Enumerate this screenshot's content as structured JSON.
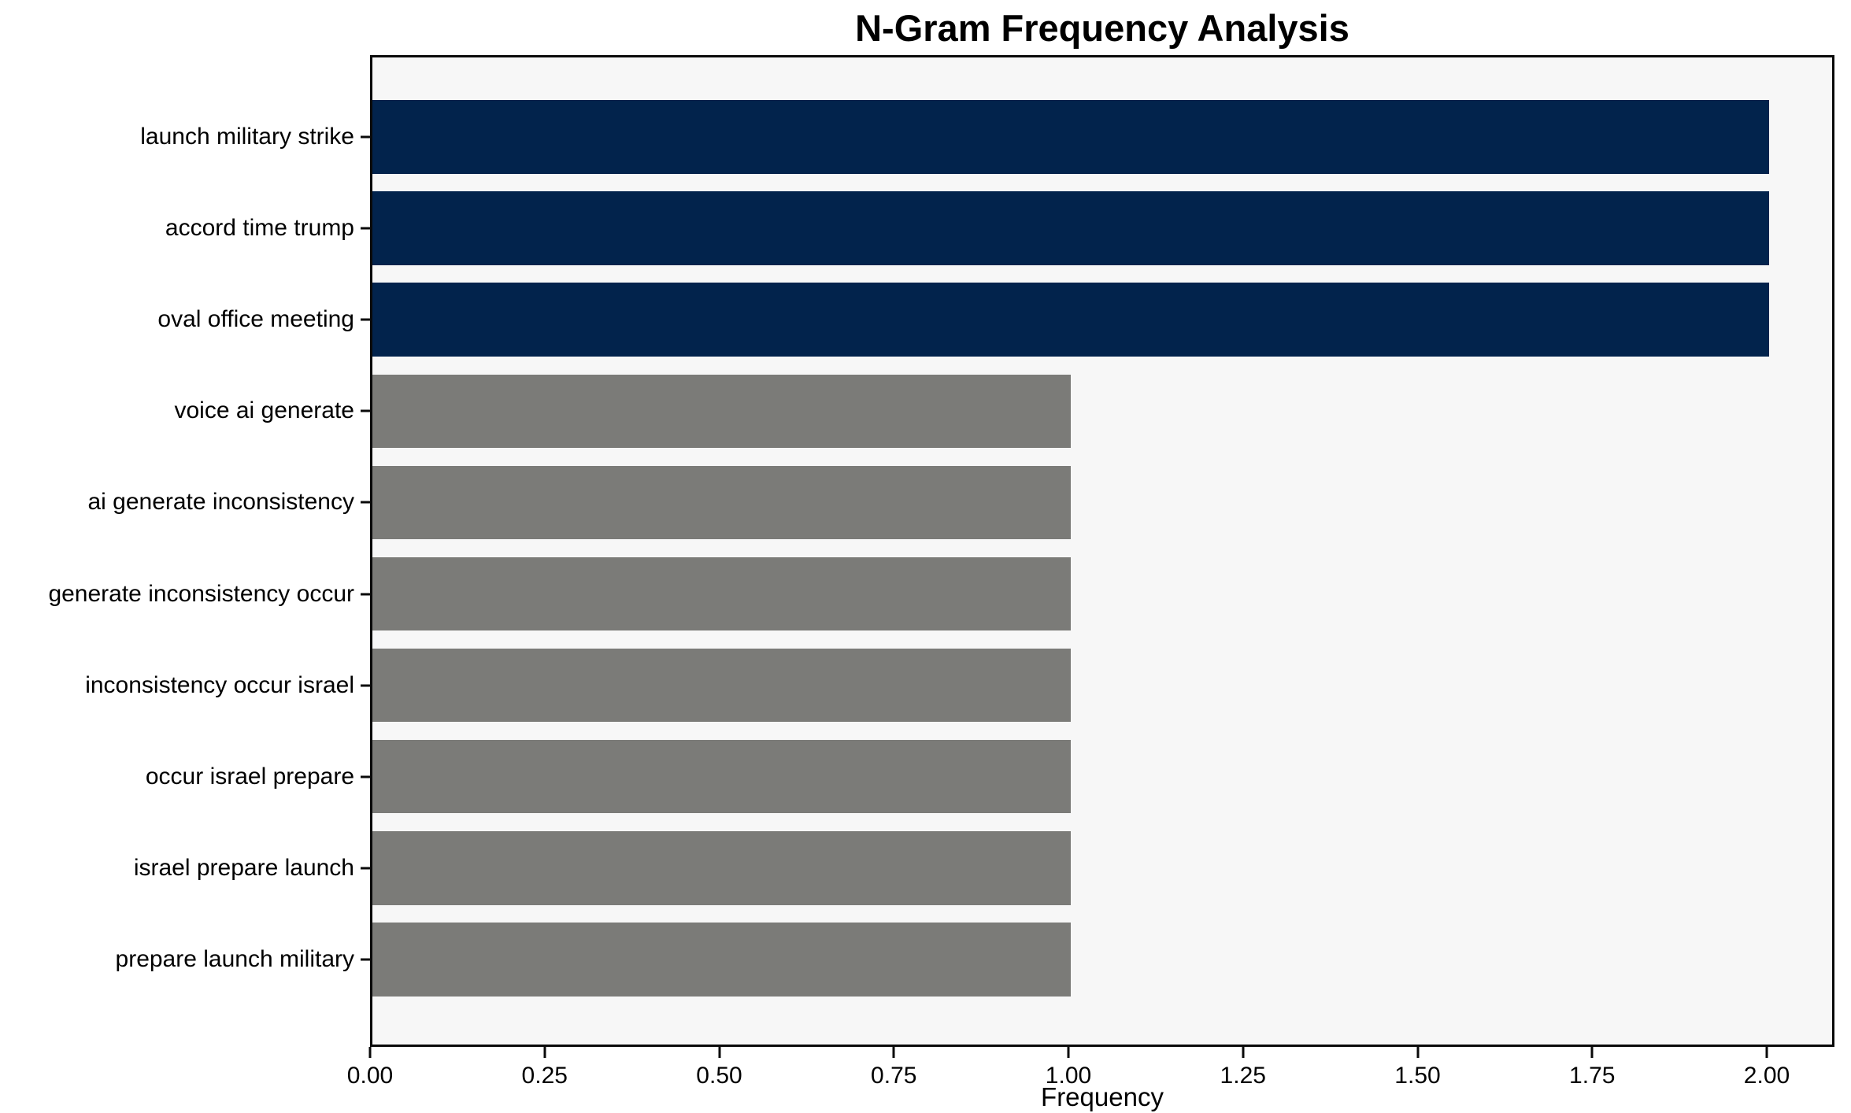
{
  "chart_data": {
    "type": "bar",
    "orientation": "horizontal",
    "title": "N-Gram Frequency Analysis",
    "xlabel": "Frequency",
    "ylabel": "",
    "categories": [
      "launch military strike",
      "accord time trump",
      "oval office meeting",
      "voice ai generate",
      "ai generate inconsistency",
      "generate inconsistency occur",
      "inconsistency occur israel",
      "occur israel prepare",
      "israel prepare launch",
      "prepare launch military"
    ],
    "values": [
      2,
      2,
      2,
      1,
      1,
      1,
      1,
      1,
      1,
      1
    ],
    "bar_colors": [
      "#02234c",
      "#02234c",
      "#02234c",
      "#7b7b78",
      "#7b7b78",
      "#7b7b78",
      "#7b7b78",
      "#7b7b78",
      "#7b7b78",
      "#7b7b78"
    ],
    "xticks": [
      "0.00",
      "0.25",
      "0.50",
      "0.75",
      "1.00",
      "1.25",
      "1.50",
      "1.75",
      "2.00"
    ],
    "xtick_values": [
      0,
      0.25,
      0.5,
      0.75,
      1.0,
      1.25,
      1.5,
      1.75,
      2.0
    ],
    "xlim": [
      0,
      2.097
    ],
    "grid": false,
    "legend": null,
    "colors": {
      "highlight_bar": "#02234c",
      "default_bar": "#7b7b78",
      "plot_background": "#f7f7f7",
      "figure_background": "#ffffff",
      "spine": "#0a0a0a",
      "text": "#000000"
    }
  }
}
